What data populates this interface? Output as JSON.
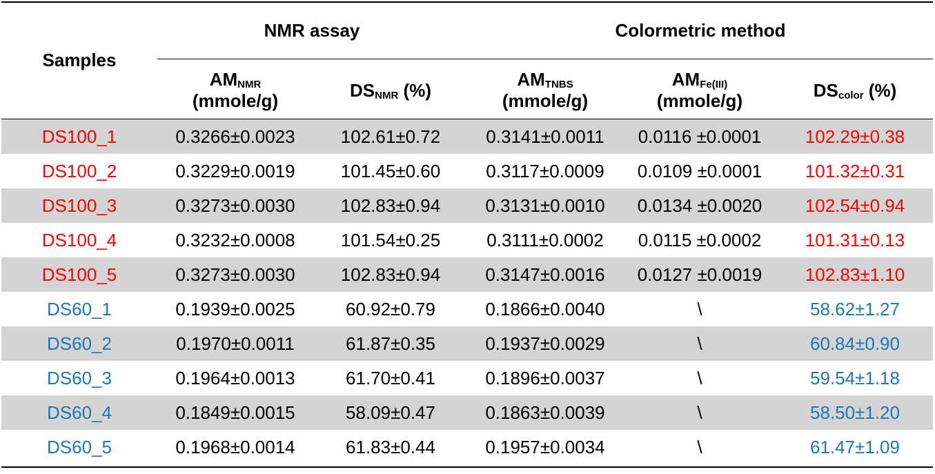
{
  "header": {
    "samples": "Samples",
    "nmr_group": "NMR assay",
    "color_group": "Colormetric method",
    "columns": [
      {
        "main": "AM",
        "sub": "NMR",
        "rest": "",
        "line2": "(mmole/g)"
      },
      {
        "main": "DS",
        "sub": "NMR",
        "rest": " (%)",
        "line2": ""
      },
      {
        "main": "AM",
        "sub": "TNBS",
        "rest": "",
        "line2": "(mmole/g)"
      },
      {
        "main": "AM",
        "sub": "Fe(III)",
        "rest": "",
        "line2": "(mmole/g)"
      },
      {
        "main": "DS",
        "sub": "color",
        "rest": " (%)",
        "line2": ""
      }
    ]
  },
  "colors": {
    "ds100": "#ff0000",
    "ds60": "#1f77b4",
    "shade": "#d4d4d4",
    "text": "#000000"
  },
  "rows": [
    {
      "group": "ds100",
      "cells": [
        "DS100_1",
        "0.3266±0.0023",
        "102.61±0.72",
        "0.3141±0.0011",
        "0.0116 ±0.0001",
        "102.29±0.38"
      ]
    },
    {
      "group": "ds100",
      "cells": [
        "DS100_2",
        "0.3229±0.0019",
        "101.45±0.60",
        "0.3117±0.0009",
        "0.0109 ±0.0001",
        "101.32±0.31"
      ]
    },
    {
      "group": "ds100",
      "cells": [
        "DS100_3",
        "0.3273±0.0030",
        "102.83±0.94",
        "0.3131±0.0010",
        "0.0134 ±0.0020",
        "102.54±0.94"
      ]
    },
    {
      "group": "ds100",
      "cells": [
        "DS100_4",
        "0.3232±0.0008",
        "101.54±0.25",
        "0.3111±0.0002",
        "0.0115 ±0.0002",
        "101.31±0.13"
      ]
    },
    {
      "group": "ds100",
      "cells": [
        "DS100_5",
        "0.3273±0.0030",
        "102.83±0.94",
        "0.3147±0.0016",
        "0.0127 ±0.0019",
        "102.83±1.10"
      ]
    },
    {
      "group": "ds60",
      "cells": [
        "DS60_1",
        "0.1939±0.0025",
        "60.92±0.79",
        "0.1866±0.0040",
        "\\",
        "58.62±1.27"
      ]
    },
    {
      "group": "ds60",
      "cells": [
        "DS60_2",
        "0.1970±0.0011",
        "61.87±0.35",
        "0.1937±0.0029",
        "\\",
        "60.84±0.90"
      ]
    },
    {
      "group": "ds60",
      "cells": [
        "DS60_3",
        "0.1964±0.0013",
        "61.70±0.41",
        "0.1896±0.0037",
        "\\",
        "59.54±1.18"
      ]
    },
    {
      "group": "ds60",
      "cells": [
        "DS60_4",
        "0.1849±0.0015",
        "58.09±0.47",
        "0.1863±0.0039",
        "\\",
        "58.50±1.20"
      ]
    },
    {
      "group": "ds60",
      "cells": [
        "DS60_5",
        "0.1968±0.0014",
        "61.83±0.44",
        "0.1957±0.0034",
        "\\",
        "61.47±1.09"
      ]
    }
  ]
}
